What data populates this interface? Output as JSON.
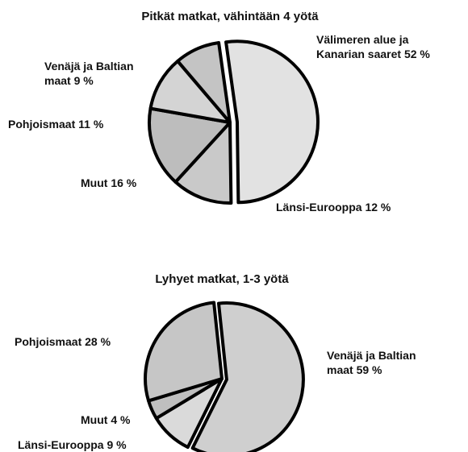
{
  "chart_data": [
    {
      "type": "pie",
      "title": "Pitkät matkat, vähintään 4 yötä",
      "categories": [
        "Välimeren alue ja Kanarian saaret",
        "Länsi-Eurooppa",
        "Muut",
        "Pohjoismaat",
        "Venäjä ja Baltian maat"
      ],
      "values": [
        52,
        12,
        16,
        11,
        9
      ],
      "value_labels": [
        "52 %",
        "12 %",
        "16 %",
        "11 %",
        "9 %"
      ],
      "colors": [
        "#e2e2e2",
        "#c9c9c9",
        "#bdbdbd",
        "#d4d4d4",
        "#c4c4c4"
      ]
    },
    {
      "type": "pie",
      "title": "Lyhyet matkat, 1-3 yötä",
      "categories": [
        "Venäjä ja Baltian maat",
        "Länsi-Eurooppa",
        "Muut",
        "Pohjoismaat"
      ],
      "values": [
        59,
        9,
        4,
        28
      ],
      "value_labels": [
        "59 %",
        "9 %",
        "4 %",
        "28 %"
      ],
      "colors": [
        "#cfcfcf",
        "#dadada",
        "#bfbfbf",
        "#c6c6c6"
      ]
    }
  ]
}
